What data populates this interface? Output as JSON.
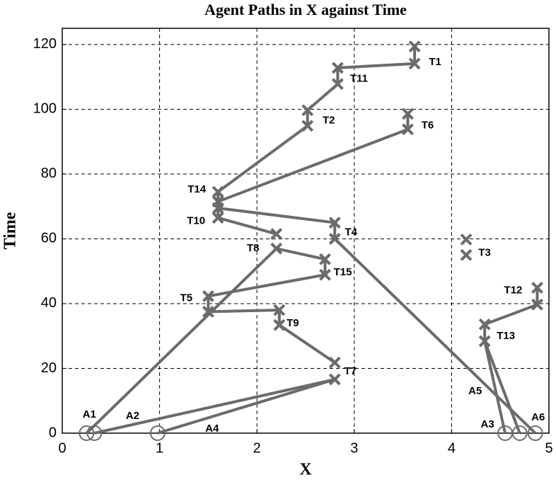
{
  "chart_data": {
    "type": "paths",
    "title": "Agent Paths in X against Time",
    "x_label": "X",
    "y_label": "Time",
    "xlim": [
      0,
      5
    ],
    "ylim": [
      0,
      125
    ],
    "xticks": [
      0,
      1,
      2,
      3,
      4,
      5
    ],
    "yticks": [
      0,
      20,
      40,
      60,
      80,
      100,
      120
    ],
    "grid": true,
    "color": "#6b6b6b",
    "series": [
      {
        "name": "A1",
        "x": [
          0.25,
          2.2,
          2.7,
          2.7,
          1.5,
          1.5,
          2.23,
          2.23,
          2.8,
          null,
          2.2,
          1.6,
          1.6,
          2.52,
          2.52,
          2.83,
          2.83,
          3.62,
          3.62
        ],
        "values": [
          0,
          57,
          53.7,
          48.9,
          42.3,
          37.5,
          38,
          33.4,
          21.8,
          null,
          61.5,
          66.5,
          74.5,
          94.9,
          99.7,
          107.8,
          112.8,
          114.1,
          119.4
        ]
      },
      {
        "name": "A2",
        "x": [
          0.33,
          2.8
        ],
        "values": [
          0,
          16.6
        ]
      },
      {
        "name": "A3",
        "x": [
          4.55,
          4.34,
          4.34,
          4.88,
          4.88
        ],
        "values": [
          0,
          28.4,
          33.6,
          39.7,
          44.9
        ]
      },
      {
        "name": "A4",
        "x": [
          0.98,
          2.8
        ],
        "values": [
          0,
          16.6
        ]
      },
      {
        "name": "A5",
        "x": [
          4.7,
          4.34
        ],
        "values": [
          0,
          28.4
        ]
      },
      {
        "name": "A6",
        "x": [
          4.86,
          2.8,
          2.8,
          1.6,
          1.6,
          3.55,
          3.55
        ],
        "values": [
          0,
          60,
          65,
          69.5,
          71.5,
          93.8,
          98.6
        ]
      }
    ],
    "tasks": [
      {
        "name": "T1",
        "x": 3.62,
        "y": [
          119.4,
          114.1
        ]
      },
      {
        "name": "T11",
        "x": 2.83,
        "y": [
          112.8,
          107.8
        ]
      },
      {
        "name": "T2",
        "x": 2.52,
        "y": [
          99.7,
          94.9
        ]
      },
      {
        "name": "T6",
        "x": 3.55,
        "y": [
          98.6,
          93.8
        ]
      },
      {
        "name": "T14",
        "x": 1.6,
        "y": [
          74.5,
          71.5
        ]
      },
      {
        "name": "T10",
        "x": 1.6,
        "y": [
          69.5,
          66.5
        ]
      },
      {
        "name": "T4",
        "x": 2.8,
        "y": [
          65,
          60
        ]
      },
      {
        "name": "T8",
        "x": 2.2,
        "y": [
          61.5,
          57
        ]
      },
      {
        "name": "T3",
        "x": 4.15,
        "y": [
          59.8,
          55
        ]
      },
      {
        "name": "T15",
        "x": 2.7,
        "y": [
          53.7,
          48.9
        ]
      },
      {
        "name": "T5",
        "x": 1.5,
        "y": [
          42.3,
          37.5
        ]
      },
      {
        "name": "T9",
        "x": 2.23,
        "y": [
          38,
          33.4
        ]
      },
      {
        "name": "T7",
        "x": 2.8,
        "y": [
          21.8,
          16.6
        ]
      },
      {
        "name": "T12",
        "x": 4.88,
        "y": [
          44.9,
          39.7
        ]
      },
      {
        "name": "T13",
        "x": 4.34,
        "y": [
          33.6,
          28.4
        ]
      }
    ]
  }
}
